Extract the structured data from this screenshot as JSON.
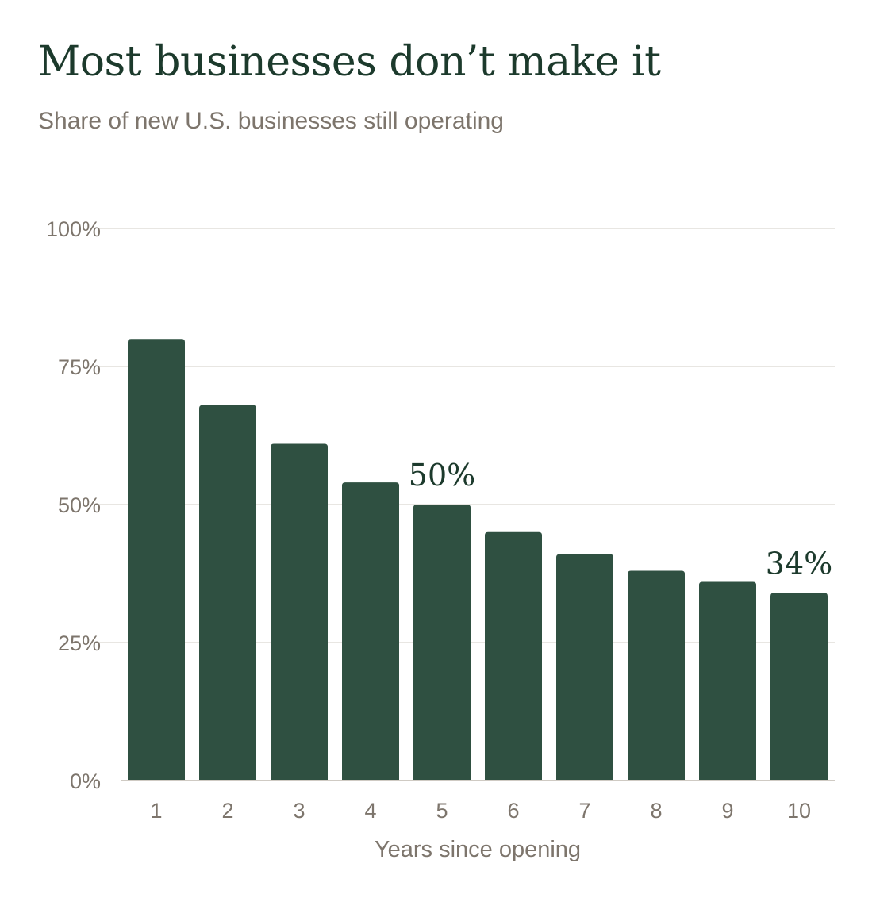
{
  "title": "Most businesses don’t make it",
  "subtitle": "Share of new U.S. businesses still operating",
  "colors": {
    "bar": "#2f5041",
    "title": "#1c3a2c",
    "muted_text": "#7d756c",
    "grid": "#e8e6e2",
    "baseline": "#cfcac3"
  },
  "chart_data": {
    "type": "bar",
    "categories": [
      "1",
      "2",
      "3",
      "4",
      "5",
      "6",
      "7",
      "8",
      "9",
      "10"
    ],
    "values": [
      80,
      68,
      61,
      54,
      50,
      45,
      41,
      38,
      36,
      34
    ],
    "xlabel": "Years since opening",
    "ylabel": "",
    "ylim": [
      0,
      100
    ],
    "yticks": [
      0,
      25,
      50,
      75,
      100
    ],
    "ytick_labels": [
      "0%",
      "25%",
      "50%",
      "75%",
      "100%"
    ],
    "grid": true,
    "annotations": [
      {
        "category": "5",
        "text": "50%"
      },
      {
        "category": "10",
        "text": "34%"
      }
    ]
  }
}
